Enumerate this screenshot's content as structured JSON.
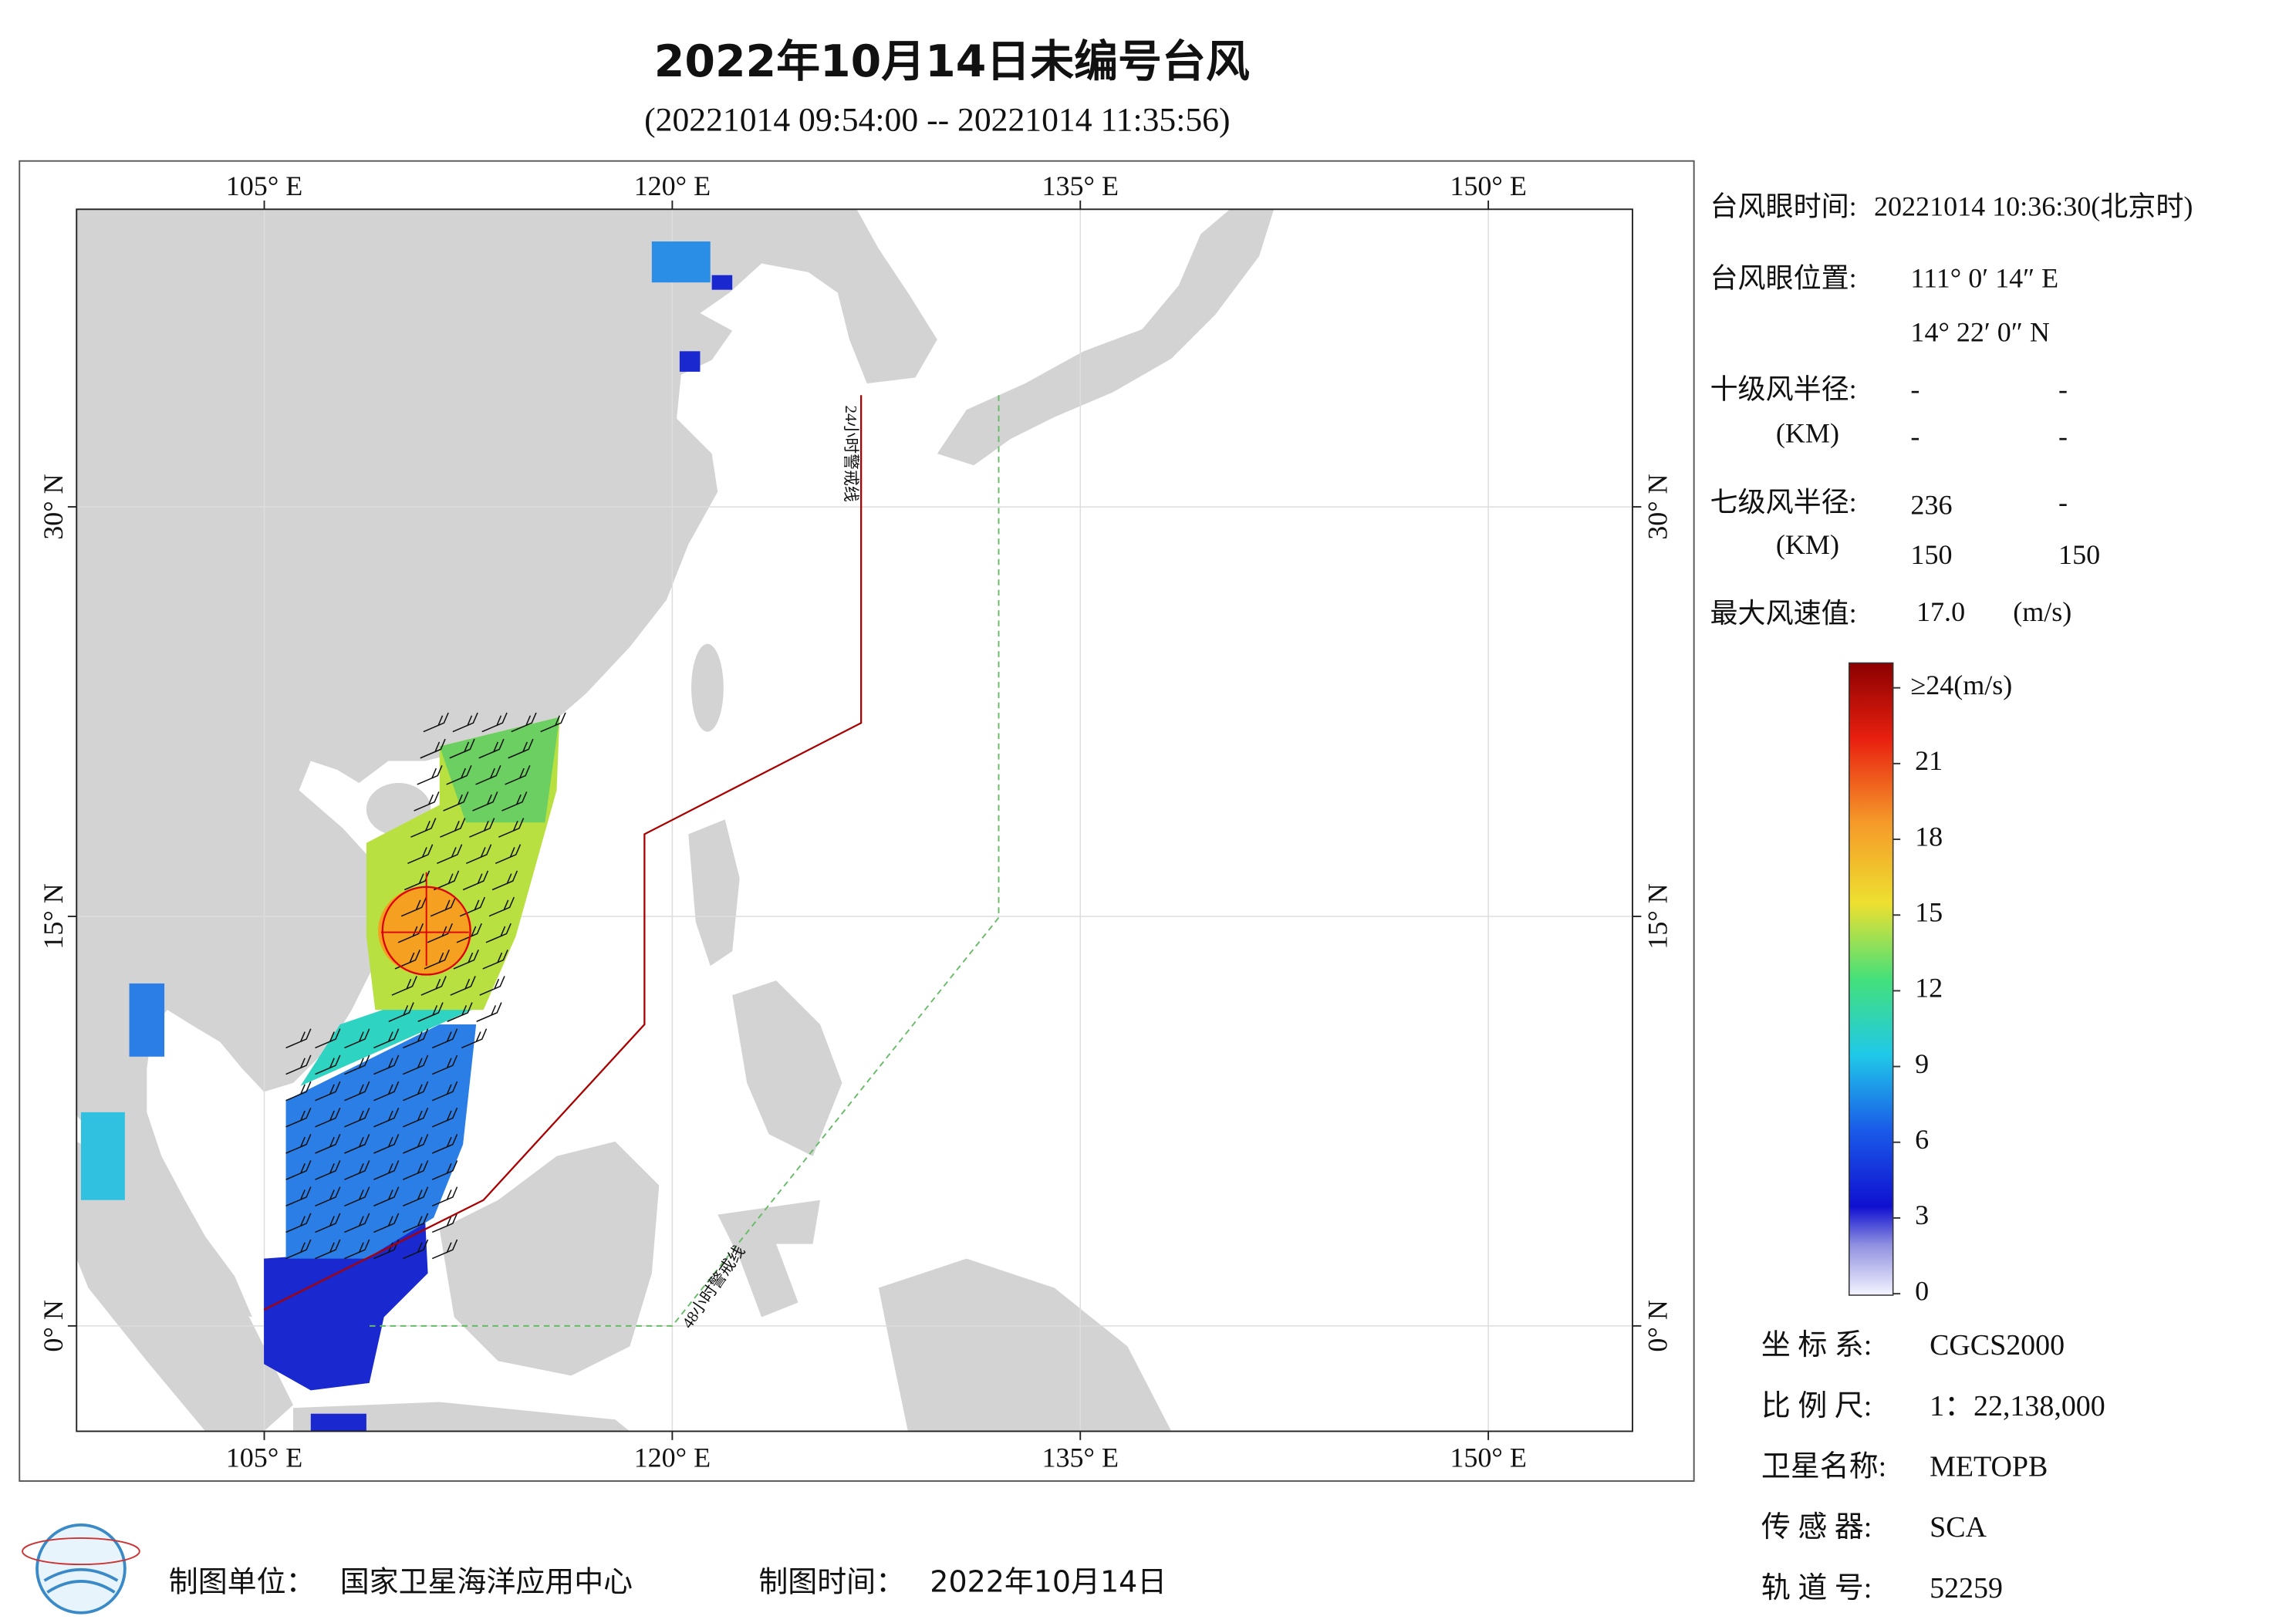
{
  "title": "2022年10月14日未编号台风",
  "subtitle": "(20221014 09:54:00 -- 20221014 11:35:56)",
  "map": {
    "lonlim": [
      98.1,
      155.3
    ],
    "latlim": [
      -3.86,
      40.9
    ],
    "lon_ticks": [
      {
        "value": 105,
        "label": "105° E"
      },
      {
        "value": 120,
        "label": "120° E"
      },
      {
        "value": 135,
        "label": "135° E"
      },
      {
        "value": 150,
        "label": "150° E"
      }
    ],
    "lat_ticks": [
      {
        "value": 0,
        "label": "0° N"
      },
      {
        "value": 15,
        "label": "15° N"
      },
      {
        "value": 30,
        "label": "30° N"
      }
    ],
    "warning_24h": "24小时警戒线",
    "warning_48h": "48小时警戒线"
  },
  "info": {
    "eye_time_label": "台风眼时间:",
    "eye_time": "20221014 10:36:30(北京时)",
    "eye_pos_label": "台风眼位置:",
    "eye_lon": "111° 0′ 14″ E",
    "eye_lat": "14° 22′ 0″ N",
    "r10_label": "十级风半径:",
    "km_label": "(KM)",
    "r10": [
      "-",
      "-",
      "-",
      "-"
    ],
    "r7_label": "七级风半径:",
    "r7": [
      "236",
      "-",
      "150",
      "150"
    ],
    "max_wind_label": "最大风速值:",
    "max_wind": "17.0",
    "max_wind_unit": "(m/s)"
  },
  "colorbar": {
    "range": [
      0,
      24
    ],
    "ticks": [
      0,
      3,
      6,
      9,
      12,
      15,
      18,
      21
    ],
    "top_label": {
      "value": 24,
      "label": "≥24(m/s)"
    }
  },
  "meta": [
    {
      "label": "坐 标 系:",
      "value": "CGCS2000"
    },
    {
      "label": "比 例 尺:",
      "value": "1：22,138,000"
    },
    {
      "label": "卫星名称:",
      "value": "METOPB"
    },
    {
      "label": "传 感 器:",
      "value": "SCA"
    },
    {
      "label": "轨 道 号:",
      "value": "52259"
    }
  ],
  "footer": {
    "unit_label": "制图单位：",
    "unit": "国家卫星海洋应用中心",
    "time_label": "制图时间：",
    "time": "2022年10月14日"
  }
}
